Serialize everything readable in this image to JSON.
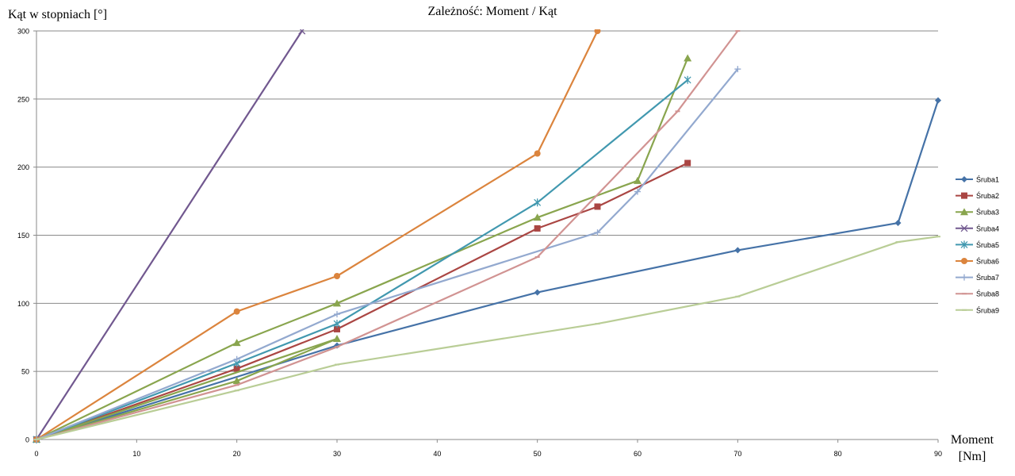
{
  "chart_data": {
    "type": "line",
    "title": "Zależność: Moment / Kąt",
    "ylabel": "Kąt w stopniach [°]",
    "xlabel_line1": "Moment",
    "xlabel_line2": "[Nm]",
    "xlim": [
      0,
      90
    ],
    "ylim": [
      0,
      300
    ],
    "x_ticks": [
      0,
      10,
      20,
      30,
      40,
      50,
      60,
      70,
      80,
      90
    ],
    "y_ticks": [
      0,
      50,
      100,
      150,
      200,
      250,
      300
    ],
    "grid": "horizontal",
    "legend_position": "right",
    "series": [
      {
        "name": "Śruba1",
        "color": "#4572A7",
        "marker": "diamond",
        "points": [
          [
            0,
            0
          ],
          [
            30,
            69
          ],
          [
            50,
            108
          ],
          [
            70,
            139
          ],
          [
            86,
            159
          ],
          [
            90,
            249
          ]
        ]
      },
      {
        "name": "Śruba2",
        "color": "#AA4643",
        "marker": "square",
        "points": [
          [
            0,
            0
          ],
          [
            20,
            52
          ],
          [
            30,
            81
          ],
          [
            50,
            155
          ],
          [
            56,
            171
          ],
          [
            65,
            203
          ]
        ]
      },
      {
        "name": "Śruba3",
        "color": "#89A54E",
        "marker": "triangle",
        "points": [
          [
            0,
            0
          ],
          [
            20,
            43
          ],
          [
            30,
            74
          ],
          [
            0,
            0
          ],
          [
            20,
            71
          ],
          [
            30,
            100
          ],
          [
            50,
            163
          ],
          [
            60,
            190
          ],
          [
            65,
            280
          ]
        ]
      },
      {
        "name": "Śruba4",
        "color": "#71588F",
        "marker": "x",
        "points": [
          [
            0,
            0
          ],
          [
            26.5,
            300
          ]
        ]
      },
      {
        "name": "Śruba5",
        "color": "#4198AF",
        "marker": "star",
        "points": [
          [
            0,
            0
          ],
          [
            20,
            56
          ],
          [
            30,
            85
          ],
          [
            50,
            174
          ],
          [
            65,
            264
          ]
        ]
      },
      {
        "name": "Śruba6",
        "color": "#DB843D",
        "marker": "circle",
        "points": [
          [
            0,
            0
          ],
          [
            20,
            94
          ],
          [
            30,
            120
          ],
          [
            50,
            210
          ],
          [
            56,
            300
          ]
        ]
      },
      {
        "name": "Śruba7",
        "color": "#93A9CF",
        "marker": "plus",
        "points": [
          [
            0,
            0
          ],
          [
            20,
            59
          ],
          [
            30,
            92
          ],
          [
            56,
            152
          ],
          [
            60,
            182
          ],
          [
            70,
            272
          ]
        ]
      },
      {
        "name": "Śruba8",
        "color": "#D19392",
        "marker": "dash",
        "points": [
          [
            0,
            0
          ],
          [
            20,
            40
          ],
          [
            30,
            68
          ],
          [
            50,
            134
          ],
          [
            64,
            241
          ],
          [
            70,
            300
          ]
        ]
      },
      {
        "name": "Śruba9",
        "color": "#B9CD96",
        "marker": "dash",
        "points": [
          [
            0,
            0
          ],
          [
            20,
            36
          ],
          [
            30,
            55
          ],
          [
            56,
            85
          ],
          [
            70,
            105
          ],
          [
            86,
            145
          ],
          [
            90,
            149
          ]
        ]
      }
    ]
  }
}
